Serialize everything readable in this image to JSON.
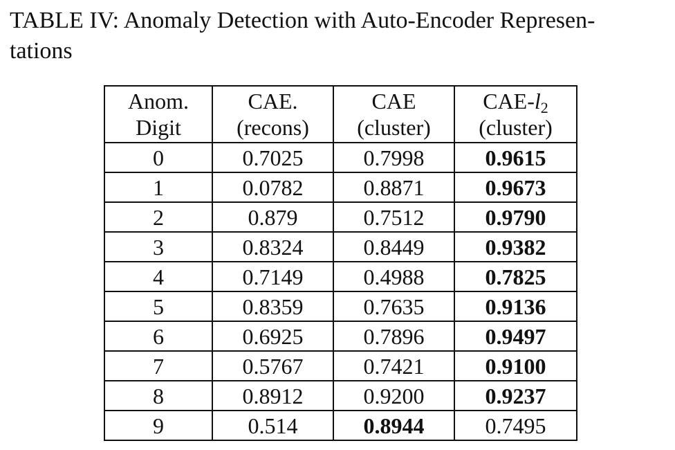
{
  "caption": "TABLE IV: Anomaly Detection with Auto-Encoder Representations",
  "caption_line1": "TABLE IV: Anomaly Detection with Auto-Encoder Represen-",
  "caption_line2": "tations",
  "table": {
    "headers": {
      "digit": [
        "Anom.",
        "Digit"
      ],
      "recons": [
        "CAE.",
        "(recons)"
      ],
      "cluster": [
        "CAE",
        "(cluster)"
      ],
      "l2": {
        "prefix": "CAE-",
        "var": "l",
        "sub": "2",
        "line2": "(cluster)"
      }
    },
    "rows": [
      {
        "digit": "0",
        "recons": "0.7025",
        "cluster": "0.7998",
        "l2": "0.9615",
        "bold": "l2"
      },
      {
        "digit": "1",
        "recons": "0.0782",
        "cluster": "0.8871",
        "l2": "0.9673",
        "bold": "l2"
      },
      {
        "digit": "2",
        "recons": "0.879",
        "cluster": "0.7512",
        "l2": "0.9790",
        "bold": "l2"
      },
      {
        "digit": "3",
        "recons": "0.8324",
        "cluster": "0.8449",
        "l2": "0.9382",
        "bold": "l2"
      },
      {
        "digit": "4",
        "recons": "0.7149",
        "cluster": "0.4988",
        "l2": "0.7825",
        "bold": "l2"
      },
      {
        "digit": "5",
        "recons": "0.8359",
        "cluster": "0.7635",
        "l2": "0.9136",
        "bold": "l2"
      },
      {
        "digit": "6",
        "recons": "0.6925",
        "cluster": "0.7896",
        "l2": "0.9497",
        "bold": "l2"
      },
      {
        "digit": "7",
        "recons": "0.5767",
        "cluster": "0.7421",
        "l2": "0.9100",
        "bold": "l2"
      },
      {
        "digit": "8",
        "recons": "0.8912",
        "cluster": "0.9200",
        "l2": "0.9237",
        "bold": "l2"
      },
      {
        "digit": "9",
        "recons": "0.514",
        "cluster": "0.8944",
        "l2": "0.7495",
        "bold": "cluster"
      }
    ]
  }
}
